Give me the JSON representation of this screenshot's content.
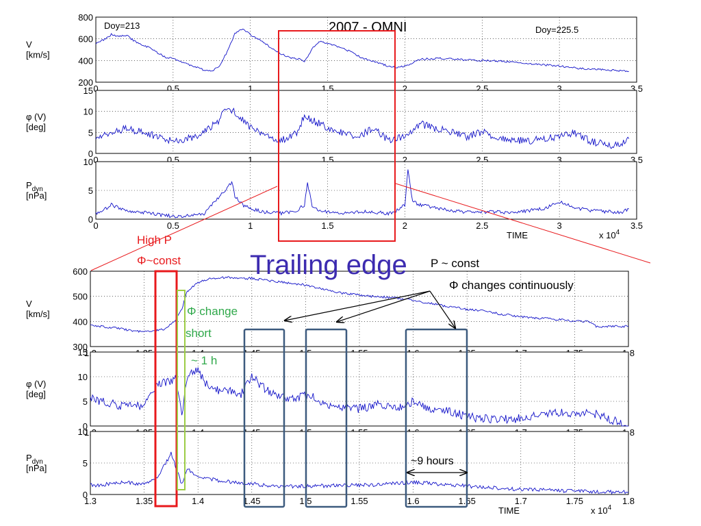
{
  "chart_data": [
    {
      "type": "line",
      "panel_group": "overview",
      "title": "2007 - OMNI",
      "doy_start": "Doy=213",
      "doy_end": "Doy=225.5",
      "xlabel": "TIME",
      "x_multiplier": "x 10",
      "x_multiplier_exp": "4",
      "xlim": [
        0,
        3.5
      ],
      "xticks": [
        "0",
        "0.5",
        "1",
        "1.5",
        "2",
        "2.5",
        "3",
        "3.5"
      ],
      "grid": true,
      "panels": [
        {
          "name": "V",
          "ylabel": "V",
          "ylabel2": "[km/s]",
          "ylim": [
            200,
            800
          ],
          "yticks": [
            "200",
            "400",
            "600",
            "800"
          ],
          "series": [
            {
              "color": "#1010c8",
              "x": [
                0,
                0.05,
                0.1,
                0.15,
                0.2,
                0.25,
                0.3,
                0.35,
                0.4,
                0.45,
                0.5,
                0.55,
                0.6,
                0.65,
                0.7,
                0.75,
                0.8,
                0.85,
                0.9,
                0.95,
                1.0,
                1.05,
                1.1,
                1.15,
                1.2,
                1.25,
                1.3,
                1.35,
                1.4,
                1.45,
                1.5,
                1.55,
                1.6,
                1.65,
                1.7,
                1.75,
                1.8,
                1.85,
                1.9,
                1.95,
                2.0,
                2.1,
                2.2,
                2.3,
                2.4,
                2.5,
                2.6,
                2.7,
                2.8,
                2.9,
                3.0,
                3.1,
                3.2,
                3.3,
                3.4,
                3.45
              ],
              "y": [
                560,
                590,
                640,
                620,
                630,
                580,
                540,
                520,
                470,
                430,
                420,
                390,
                360,
                340,
                310,
                300,
                350,
                480,
                650,
                690,
                640,
                600,
                550,
                500,
                460,
                430,
                420,
                390,
                510,
                580,
                560,
                540,
                510,
                480,
                440,
                410,
                390,
                370,
                345,
                335,
                350,
                410,
                420,
                415,
                405,
                400,
                395,
                385,
                370,
                360,
                350,
                330,
                320,
                315,
                305,
                300
              ]
            }
          ]
        },
        {
          "name": "phi",
          "ylabel": "φ (V)",
          "ylabel2": "[deg]",
          "ylim": [
            0,
            15
          ],
          "yticks": [
            "0",
            "5",
            "10",
            "15"
          ],
          "series": [
            {
              "color": "#1010c8",
              "x": [
                0,
                0.1,
                0.2,
                0.3,
                0.4,
                0.5,
                0.6,
                0.7,
                0.8,
                0.85,
                0.9,
                0.95,
                1.0,
                1.1,
                1.2,
                1.3,
                1.35,
                1.4,
                1.45,
                1.5,
                1.6,
                1.7,
                1.8,
                1.9,
                2.0,
                2.1,
                2.2,
                2.3,
                2.4,
                2.5,
                2.6,
                2.7,
                2.8,
                2.9,
                3.0,
                3.1,
                3.2,
                3.3,
                3.4,
                3.45
              ],
              "y": [
                4,
                5,
                6,
                5,
                4,
                3,
                3.5,
                5,
                8,
                11,
                10,
                8,
                6,
                4,
                3,
                5,
                9,
                8,
                7,
                6,
                5,
                4,
                6,
                3,
                4,
                7,
                6,
                5,
                4,
                5,
                4,
                3,
                3,
                3.5,
                4,
                5,
                3,
                2,
                2,
                3.5
              ]
            }
          ]
        },
        {
          "name": "Pdyn",
          "ylabel": "P",
          "ylabel_sub": "dyn",
          "ylabel2": "[nPa]",
          "ylim": [
            0,
            10
          ],
          "yticks": [
            "0",
            "5",
            "10"
          ],
          "series": [
            {
              "color": "#1010c8",
              "x": [
                0,
                0.05,
                0.1,
                0.2,
                0.3,
                0.4,
                0.5,
                0.6,
                0.7,
                0.75,
                0.8,
                0.85,
                0.88,
                0.9,
                0.95,
                1.0,
                1.1,
                1.2,
                1.3,
                1.35,
                1.37,
                1.4,
                1.45,
                1.5,
                1.6,
                1.7,
                1.8,
                1.9,
                1.95,
                2.0,
                2.02,
                2.05,
                2.1,
                2.2,
                2.3,
                2.4,
                2.5,
                2.6,
                2.7,
                2.8,
                2.9,
                3.0,
                3.1,
                3.2,
                3.3,
                3.4,
                3.45
              ],
              "y": [
                1,
                1.5,
                2.5,
                1.5,
                1.2,
                0.8,
                0.5,
                0.6,
                0.9,
                2.5,
                4,
                5.5,
                6.5,
                4,
                2.5,
                1.8,
                1.2,
                1,
                1.5,
                2.5,
                6.5,
                2,
                1.5,
                1.2,
                1,
                1.3,
                1.2,
                1,
                1.5,
                2.5,
                8.5,
                3,
                2.5,
                2,
                1.5,
                1.2,
                1.2,
                1.3,
                1.1,
                1.5,
                1.8,
                3,
                2,
                1.5,
                1.3,
                1.2,
                1.8
              ]
            }
          ]
        }
      ],
      "highlight": {
        "x0": 1.2,
        "x1": 1.93,
        "color": "#e8191c"
      }
    },
    {
      "type": "line",
      "panel_group": "zoom",
      "xlabel": "TIME",
      "x_multiplier": "x 10",
      "x_multiplier_exp": "4",
      "xlim": [
        1.3,
        1.8
      ],
      "xticks": [
        "1.3",
        "1.35",
        "1.4",
        "1.45",
        "1.5",
        "1.55",
        "1.6",
        "1.65",
        "1.7",
        "1.75",
        "1.8"
      ],
      "grid": true,
      "panels": [
        {
          "name": "V",
          "ylabel": "V",
          "ylabel2": "[km/s]",
          "ylim": [
            300,
            600
          ],
          "yticks": [
            "300",
            "400",
            "500",
            "600"
          ],
          "series": [
            {
              "color": "#1010c8",
              "x": [
                1.3,
                1.31,
                1.32,
                1.33,
                1.34,
                1.35,
                1.36,
                1.37,
                1.375,
                1.38,
                1.385,
                1.39,
                1.4,
                1.41,
                1.42,
                1.43,
                1.44,
                1.45,
                1.46,
                1.47,
                1.48,
                1.49,
                1.5,
                1.51,
                1.52,
                1.53,
                1.54,
                1.55,
                1.56,
                1.57,
                1.58,
                1.59,
                1.6,
                1.61,
                1.62,
                1.63,
                1.64,
                1.65,
                1.66,
                1.67,
                1.68,
                1.69,
                1.7,
                1.71,
                1.72,
                1.73,
                1.74,
                1.75,
                1.76,
                1.765,
                1.77,
                1.8
              ],
              "y": [
                385,
                380,
                375,
                370,
                362,
                360,
                362,
                370,
                390,
                410,
                450,
                520,
                555,
                570,
                575,
                575,
                570,
                572,
                565,
                560,
                555,
                550,
                545,
                535,
                525,
                515,
                510,
                505,
                500,
                498,
                495,
                490,
                485,
                475,
                470,
                460,
                455,
                448,
                445,
                440,
                430,
                425,
                420,
                415,
                412,
                410,
                405,
                402,
                400,
                398,
                380,
                380
              ]
            }
          ]
        },
        {
          "name": "phi",
          "ylabel": "φ (V)",
          "ylabel2": "[deg]",
          "ylim": [
            0,
            15
          ],
          "yticks": [
            "0",
            "5",
            "10",
            "15"
          ],
          "series": [
            {
              "color": "#1010c8",
              "x": [
                1.3,
                1.31,
                1.32,
                1.33,
                1.34,
                1.35,
                1.36,
                1.37,
                1.38,
                1.385,
                1.39,
                1.395,
                1.4,
                1.41,
                1.42,
                1.43,
                1.44,
                1.45,
                1.46,
                1.47,
                1.48,
                1.49,
                1.5,
                1.51,
                1.52,
                1.53,
                1.54,
                1.55,
                1.56,
                1.57,
                1.58,
                1.59,
                1.6,
                1.61,
                1.62,
                1.63,
                1.64,
                1.65,
                1.66,
                1.67,
                1.68,
                1.69,
                1.7,
                1.71,
                1.72,
                1.73,
                1.74,
                1.75,
                1.76,
                1.77,
                1.8
              ],
              "y": [
                6,
                5,
                4.5,
                4,
                4,
                4.2,
                8,
                9,
                9.5,
                2,
                10,
                11,
                11,
                8,
                7,
                7,
                6.5,
                10,
                8,
                6.5,
                6,
                5.5,
                6.5,
                5.5,
                4.5,
                4,
                3.5,
                3.5,
                4,
                4.5,
                3.5,
                4,
                5,
                4,
                3.5,
                3,
                2.5,
                2,
                1.5,
                1.5,
                1.2,
                1.5,
                1.5,
                2,
                2.5,
                2.5,
                3,
                2.5,
                2.5,
                2.5,
                0
              ]
            }
          ]
        },
        {
          "name": "Pdyn",
          "ylabel": "P",
          "ylabel_sub": "dyn",
          "ylabel2": "[nPa]",
          "ylim": [
            0,
            10
          ],
          "yticks": [
            "0",
            "5",
            "10"
          ],
          "series": [
            {
              "color": "#1010c8",
              "x": [
                1.3,
                1.31,
                1.32,
                1.33,
                1.34,
                1.35,
                1.36,
                1.365,
                1.37,
                1.375,
                1.38,
                1.385,
                1.39,
                1.4,
                1.41,
                1.42,
                1.43,
                1.44,
                1.45,
                1.46,
                1.48,
                1.5,
                1.52,
                1.54,
                1.56,
                1.58,
                1.6,
                1.62,
                1.64,
                1.66,
                1.68,
                1.7,
                1.72,
                1.74,
                1.76,
                1.77,
                1.8
              ],
              "y": [
                1.5,
                1.5,
                1.8,
                2,
                1.8,
                1.7,
                2.5,
                3.5,
                5,
                6.5,
                4,
                1.5,
                4,
                3,
                2.5,
                2.2,
                2,
                1.8,
                1.8,
                1.5,
                1.3,
                1.3,
                1.4,
                1.5,
                1.5,
                1.7,
                2,
                1.7,
                1.5,
                1.2,
                1,
                0.8,
                0.7,
                0.6,
                0.5,
                0.4,
                0.4
              ]
            }
          ]
        }
      ]
    }
  ],
  "annotations": {
    "trailing_edge": "Trailing edge",
    "high_p": "High P",
    "phi_const": "Φ~const",
    "phi_change": "Φ  change",
    "short": "short",
    "one_hour": "~ 1 h",
    "p_const": "P ~ const",
    "phi_continuous": "Φ changes continuously",
    "nine_hours": "~9 hours"
  },
  "colors": {
    "data": "#1010c8",
    "red_box": "#e8191c",
    "green_box": "#9ccc44",
    "blue_box": "#3c5a7e",
    "green_text": "#2fa84a",
    "title_text": "#3c2bb0"
  }
}
